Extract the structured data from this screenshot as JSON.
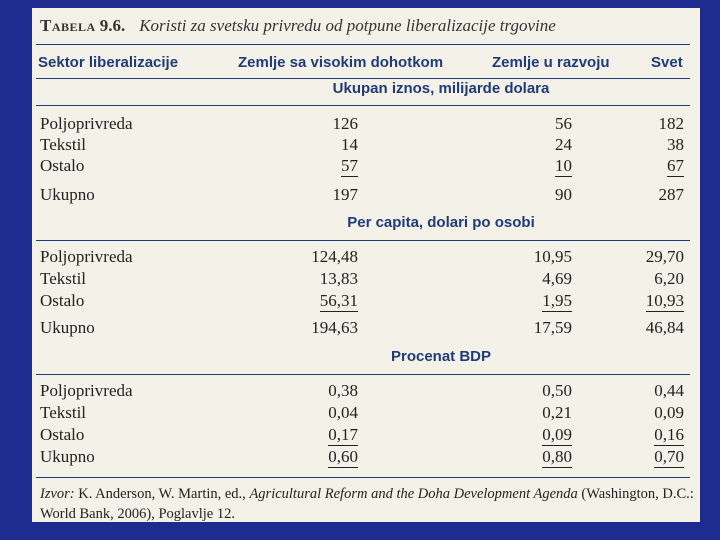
{
  "title": {
    "label": "Tabela",
    "number": "9.6.",
    "text": "Koristi za svetsku privredu od potpune liberalizacije trgovine"
  },
  "headers": {
    "sector": "Sektor liberalizacije",
    "high_income": "Zemlje sa visokim dohotkom",
    "developing": "Zemlje u razvoju",
    "world": "Svet"
  },
  "sections": [
    {
      "title": "Ukupan iznos, milijarde dolara",
      "rows": [
        {
          "label": "Poljoprivreda",
          "c1": "126",
          "c2": "56",
          "c3": "182"
        },
        {
          "label": "Tekstil",
          "c1": "14",
          "c2": "24",
          "c3": "38"
        },
        {
          "label": "Ostalo",
          "c1": "57",
          "c2": "10",
          "c3": "67"
        },
        {
          "label": "Ukupno",
          "c1": "197",
          "c2": "90",
          "c3": "287"
        }
      ]
    },
    {
      "title": "Per capita, dolari po osobi",
      "rows": [
        {
          "label": "Poljoprivreda",
          "c1": "124,48",
          "c2": "10,95",
          "c3": "29,70"
        },
        {
          "label": "Tekstil",
          "c1": "13,83",
          "c2": "4,69",
          "c3": "6,20"
        },
        {
          "label": "Ostalo",
          "c1": "56,31",
          "c2": "1,95",
          "c3": "10,93"
        },
        {
          "label": "Ukupno",
          "c1": "194,63",
          "c2": "17,59",
          "c3": "46,84"
        }
      ]
    },
    {
      "title": "Procenat BDP",
      "rows": [
        {
          "label": "Poljoprivreda",
          "c1": "0,38",
          "c2": "0,50",
          "c3": "0,44"
        },
        {
          "label": "Tekstil",
          "c1": "0,04",
          "c2": "0,21",
          "c3": "0,09"
        },
        {
          "label": "Ostalo",
          "c1": "0,17",
          "c2": "0,09",
          "c3": "0,16"
        },
        {
          "label": "Ukupno",
          "c1": "0,60",
          "c2": "0,80",
          "c3": "0,70"
        }
      ]
    }
  ],
  "source": {
    "label": "Izvor:",
    "authors": "K. Anderson, W. Martin, ed.,",
    "book": "Agricultural Reform and the Doha Development Agenda",
    "rest": "(Washington, D.C.: World Bank, 2006), Poglavlje 12."
  }
}
